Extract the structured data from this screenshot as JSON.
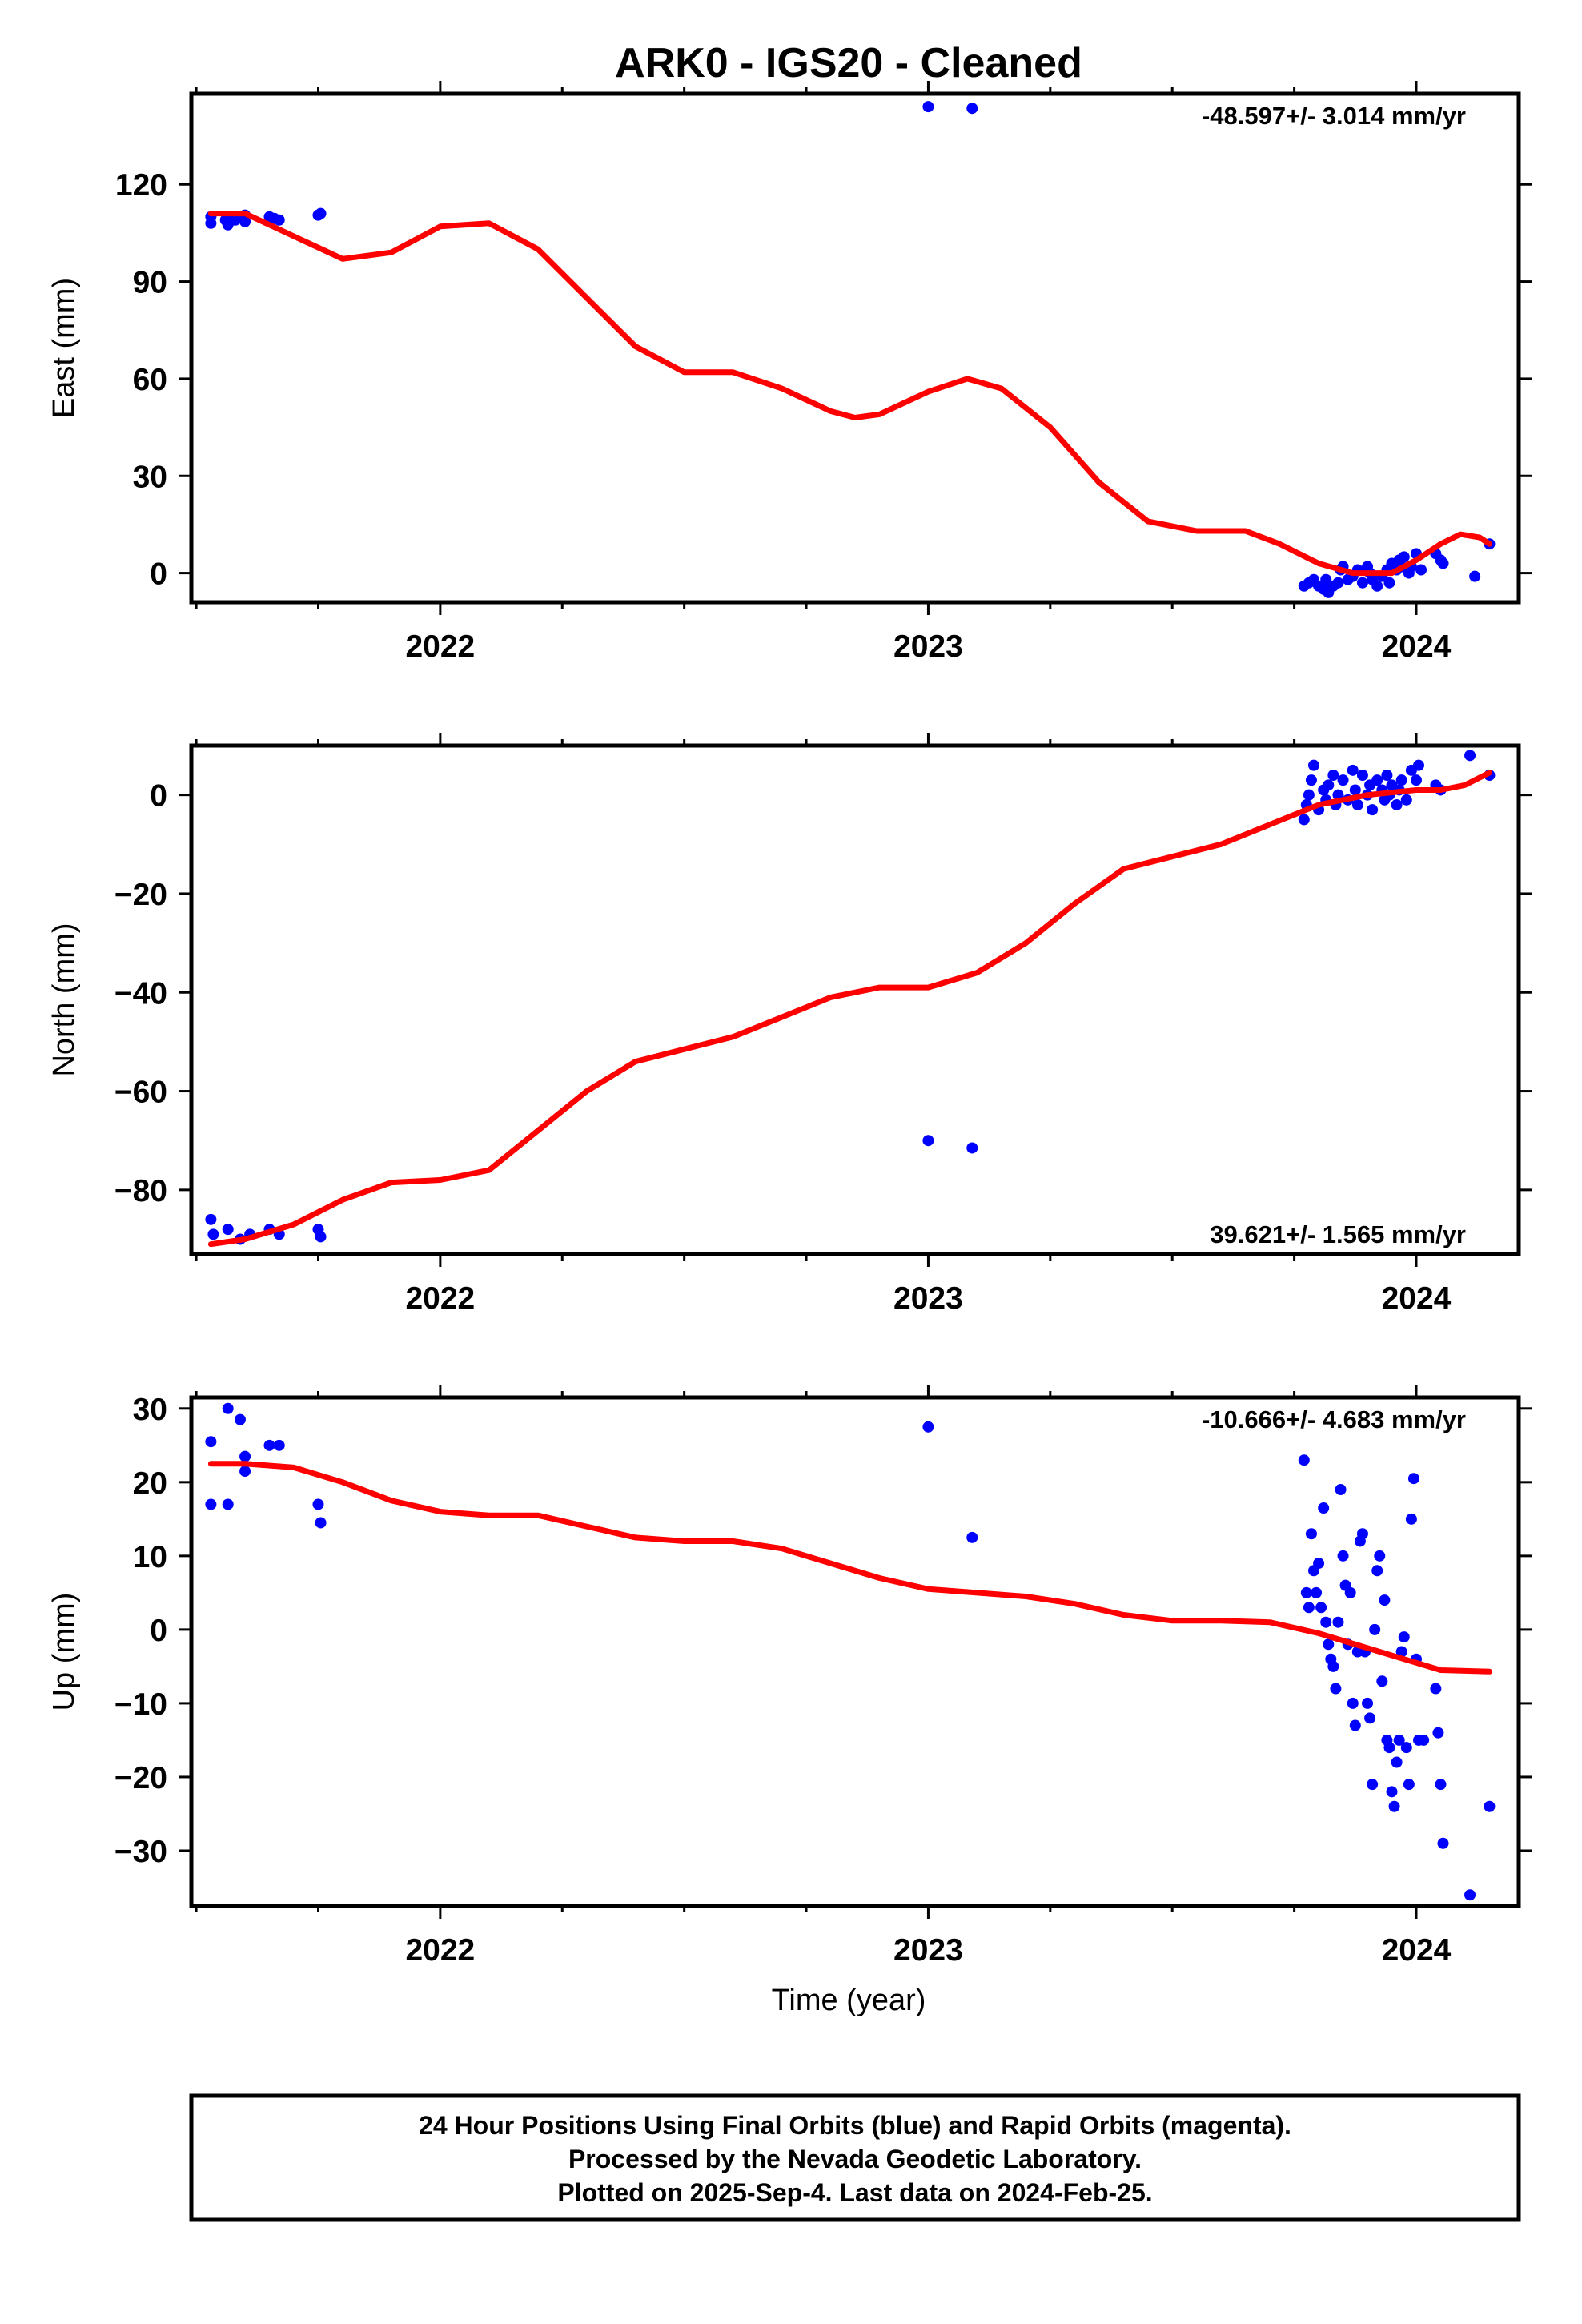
{
  "title": "ARK0  - IGS20 - Cleaned",
  "xlabel": "Time (year)",
  "footer": [
    "24 Hour Positions Using Final Orbits (blue) and Rapid Orbits (magenta).",
    "Processed by the Nevada Geodetic Laboratory.",
    "Plotted on 2025-Sep-4. Last data on 2024-Feb-25."
  ],
  "colors": {
    "points": "#0000ff",
    "model": "#ff0000",
    "frame": "#000000"
  },
  "chart_data": [
    {
      "type": "scatter",
      "panel": "east",
      "ylabel": "East (mm)",
      "rate": "-48.597+/- 3.014 mm/yr",
      "rate_position": "top-right",
      "xlim": [
        2021.49,
        2024.21
      ],
      "ylim": [
        -9,
        148
      ],
      "xticks": [
        2022,
        2023,
        2024
      ],
      "xtick_labels": [
        "2022",
        "2023",
        "2024"
      ],
      "yticks": [
        0,
        30,
        60,
        90,
        120
      ],
      "ytick_labels": [
        "0",
        "30",
        "60",
        "90",
        "120"
      ],
      "points": [
        [
          2021.53,
          108
        ],
        [
          2021.53,
          110
        ],
        [
          2021.56,
          109
        ],
        [
          2021.565,
          107.5
        ],
        [
          2021.575,
          110
        ],
        [
          2021.58,
          109
        ],
        [
          2021.6,
          108.5
        ],
        [
          2021.6,
          110.5
        ],
        [
          2021.65,
          110
        ],
        [
          2021.66,
          109.5
        ],
        [
          2021.67,
          109
        ],
        [
          2021.75,
          110.5
        ],
        [
          2021.755,
          111
        ],
        [
          2023.0,
          144
        ],
        [
          2023.09,
          143.5
        ],
        [
          2023.77,
          -4
        ],
        [
          2023.78,
          -3
        ],
        [
          2023.79,
          -2
        ],
        [
          2023.8,
          -4
        ],
        [
          2023.81,
          -5
        ],
        [
          2023.815,
          -2
        ],
        [
          2023.82,
          -6
        ],
        [
          2023.83,
          -4
        ],
        [
          2023.84,
          -3
        ],
        [
          2023.845,
          1
        ],
        [
          2023.85,
          2
        ],
        [
          2023.86,
          -2
        ],
        [
          2023.87,
          -1
        ],
        [
          2023.88,
          1
        ],
        [
          2023.89,
          -3
        ],
        [
          2023.9,
          2
        ],
        [
          2023.905,
          0
        ],
        [
          2023.91,
          -2
        ],
        [
          2023.92,
          -4
        ],
        [
          2023.93,
          -1
        ],
        [
          2023.94,
          1
        ],
        [
          2023.945,
          -3
        ],
        [
          2023.95,
          3
        ],
        [
          2023.96,
          1
        ],
        [
          2023.965,
          4
        ],
        [
          2023.97,
          2
        ],
        [
          2023.975,
          5
        ],
        [
          2023.985,
          0
        ],
        [
          2023.99,
          2
        ],
        [
          2024.0,
          6
        ],
        [
          2024.01,
          1
        ],
        [
          2024.04,
          6
        ],
        [
          2024.05,
          4
        ],
        [
          2024.055,
          3
        ],
        [
          2024.12,
          -1
        ],
        [
          2024.15,
          9
        ]
      ],
      "model_curve": [
        [
          2021.53,
          111
        ],
        [
          2021.6,
          111
        ],
        [
          2021.7,
          104
        ],
        [
          2021.8,
          97
        ],
        [
          2021.9,
          99
        ],
        [
          2022.0,
          107
        ],
        [
          2022.1,
          108
        ],
        [
          2022.2,
          100
        ],
        [
          2022.3,
          85
        ],
        [
          2022.4,
          70
        ],
        [
          2022.5,
          62
        ],
        [
          2022.6,
          62
        ],
        [
          2022.7,
          57
        ],
        [
          2022.8,
          50
        ],
        [
          2022.85,
          48
        ],
        [
          2022.9,
          49
        ],
        [
          2023.0,
          56
        ],
        [
          2023.08,
          60
        ],
        [
          2023.15,
          57
        ],
        [
          2023.25,
          45
        ],
        [
          2023.35,
          28
        ],
        [
          2023.45,
          16
        ],
        [
          2023.55,
          13
        ],
        [
          2023.65,
          13
        ],
        [
          2023.72,
          9
        ],
        [
          2023.8,
          3
        ],
        [
          2023.87,
          0
        ],
        [
          2023.95,
          0
        ],
        [
          2024.0,
          4
        ],
        [
          2024.05,
          9
        ],
        [
          2024.09,
          12
        ],
        [
          2024.13,
          11
        ],
        [
          2024.15,
          9
        ]
      ]
    },
    {
      "type": "scatter",
      "panel": "north",
      "ylabel": "North (mm)",
      "rate": "39.621+/- 1.565 mm/yr",
      "rate_position": "bottom-right",
      "xlim": [
        2021.49,
        2024.21
      ],
      "ylim": [
        -93,
        10
      ],
      "xticks": [
        2022,
        2023,
        2024
      ],
      "xtick_labels": [
        "2022",
        "2023",
        "2024"
      ],
      "yticks": [
        -80,
        -60,
        -40,
        -20,
        0
      ],
      "ytick_labels": [
        "−80",
        "−60",
        "−40",
        "−20",
        "0"
      ],
      "points": [
        [
          2021.53,
          -86
        ],
        [
          2021.535,
          -89
        ],
        [
          2021.565,
          -88
        ],
        [
          2021.59,
          -90
        ],
        [
          2021.61,
          -89
        ],
        [
          2021.65,
          -88
        ],
        [
          2021.67,
          -89
        ],
        [
          2021.75,
          -88
        ],
        [
          2021.755,
          -89.5
        ],
        [
          2023.0,
          -70
        ],
        [
          2023.09,
          -71.5
        ],
        [
          2023.77,
          -5
        ],
        [
          2023.775,
          -2
        ],
        [
          2023.78,
          0
        ],
        [
          2023.785,
          3
        ],
        [
          2023.79,
          6
        ],
        [
          2023.8,
          -3
        ],
        [
          2023.81,
          1
        ],
        [
          2023.815,
          -1
        ],
        [
          2023.82,
          2
        ],
        [
          2023.83,
          4
        ],
        [
          2023.835,
          -2
        ],
        [
          2023.84,
          0
        ],
        [
          2023.85,
          3
        ],
        [
          2023.86,
          -1
        ],
        [
          2023.87,
          5
        ],
        [
          2023.875,
          1
        ],
        [
          2023.88,
          -2
        ],
        [
          2023.89,
          4
        ],
        [
          2023.9,
          0
        ],
        [
          2023.905,
          2
        ],
        [
          2023.91,
          -3
        ],
        [
          2023.92,
          3
        ],
        [
          2023.93,
          1
        ],
        [
          2023.935,
          -1
        ],
        [
          2023.94,
          4
        ],
        [
          2023.945,
          0
        ],
        [
          2023.95,
          2
        ],
        [
          2023.96,
          -2
        ],
        [
          2023.965,
          1
        ],
        [
          2023.97,
          3
        ],
        [
          2023.98,
          -1
        ],
        [
          2023.99,
          5
        ],
        [
          2024.0,
          3
        ],
        [
          2024.005,
          6
        ],
        [
          2024.04,
          2
        ],
        [
          2024.05,
          1
        ],
        [
          2024.11,
          8
        ],
        [
          2024.15,
          4
        ]
      ],
      "model_curve": [
        [
          2021.53,
          -91
        ],
        [
          2021.6,
          -90
        ],
        [
          2021.7,
          -87
        ],
        [
          2021.8,
          -82
        ],
        [
          2021.9,
          -78.5
        ],
        [
          2022.0,
          -78
        ],
        [
          2022.1,
          -76
        ],
        [
          2022.2,
          -68
        ],
        [
          2022.3,
          -60
        ],
        [
          2022.4,
          -54
        ],
        [
          2022.5,
          -51.5
        ],
        [
          2022.6,
          -49
        ],
        [
          2022.7,
          -45
        ],
        [
          2022.8,
          -41
        ],
        [
          2022.9,
          -39
        ],
        [
          2023.0,
          -39
        ],
        [
          2023.1,
          -36
        ],
        [
          2023.2,
          -30
        ],
        [
          2023.3,
          -22
        ],
        [
          2023.4,
          -15
        ],
        [
          2023.5,
          -12.5
        ],
        [
          2023.6,
          -10
        ],
        [
          2023.7,
          -6
        ],
        [
          2023.8,
          -2
        ],
        [
          2023.9,
          0
        ],
        [
          2024.0,
          1
        ],
        [
          2024.05,
          1
        ],
        [
          2024.1,
          2
        ],
        [
          2024.15,
          4.5
        ]
      ]
    },
    {
      "type": "scatter",
      "panel": "up",
      "ylabel": "Up (mm)",
      "rate": "-10.666+/- 4.683 mm/yr",
      "rate_position": "top-right",
      "xlim": [
        2021.49,
        2024.21
      ],
      "ylim": [
        -37.5,
        31.5
      ],
      "xticks": [
        2022,
        2023,
        2024
      ],
      "xtick_labels": [
        "2022",
        "2023",
        "2024"
      ],
      "yticks": [
        -30,
        -20,
        -10,
        0,
        10,
        20,
        30
      ],
      "ytick_labels": [
        "−30",
        "−20",
        "−10",
        "0",
        "10",
        "20",
        "30"
      ],
      "points": [
        [
          2021.53,
          25.5
        ],
        [
          2021.53,
          17
        ],
        [
          2021.565,
          17
        ],
        [
          2021.565,
          30
        ],
        [
          2021.59,
          28.5
        ],
        [
          2021.6,
          23.5
        ],
        [
          2021.6,
          21.5
        ],
        [
          2021.65,
          25
        ],
        [
          2021.67,
          25
        ],
        [
          2021.75,
          17
        ],
        [
          2021.755,
          14.5
        ],
        [
          2023.0,
          27.5
        ],
        [
          2023.09,
          12.5
        ],
        [
          2023.77,
          23
        ],
        [
          2023.775,
          5
        ],
        [
          2023.78,
          3
        ],
        [
          2023.785,
          13
        ],
        [
          2023.79,
          8
        ],
        [
          2023.795,
          5
        ],
        [
          2023.8,
          9
        ],
        [
          2023.805,
          3
        ],
        [
          2023.81,
          16.5
        ],
        [
          2023.815,
          1
        ],
        [
          2023.82,
          -2
        ],
        [
          2023.825,
          -4
        ],
        [
          2023.83,
          -5
        ],
        [
          2023.835,
          -8
        ],
        [
          2023.84,
          1
        ],
        [
          2023.845,
          19
        ],
        [
          2023.85,
          10
        ],
        [
          2023.855,
          6
        ],
        [
          2023.86,
          -2
        ],
        [
          2023.865,
          5
        ],
        [
          2023.87,
          -10
        ],
        [
          2023.875,
          -13
        ],
        [
          2023.88,
          -3
        ],
        [
          2023.885,
          12
        ],
        [
          2023.89,
          13
        ],
        [
          2023.895,
          -3
        ],
        [
          2023.9,
          -10
        ],
        [
          2023.905,
          -12
        ],
        [
          2023.91,
          -21
        ],
        [
          2023.915,
          0
        ],
        [
          2023.92,
          8
        ],
        [
          2023.925,
          10
        ],
        [
          2023.93,
          -7
        ],
        [
          2023.935,
          4
        ],
        [
          2023.94,
          -15
        ],
        [
          2023.945,
          -16
        ],
        [
          2023.95,
          -22
        ],
        [
          2023.955,
          -24
        ],
        [
          2023.96,
          -18
        ],
        [
          2023.965,
          -15
        ],
        [
          2023.97,
          -3
        ],
        [
          2023.975,
          -1
        ],
        [
          2023.98,
          -16
        ],
        [
          2023.985,
          -21
        ],
        [
          2023.99,
          15
        ],
        [
          2023.995,
          20.5
        ],
        [
          2024.0,
          -4
        ],
        [
          2024.005,
          -15
        ],
        [
          2024.015,
          -15
        ],
        [
          2024.04,
          -8
        ],
        [
          2024.045,
          -14
        ],
        [
          2024.05,
          -21
        ],
        [
          2024.055,
          -29
        ],
        [
          2024.11,
          -36
        ],
        [
          2024.15,
          -24
        ]
      ],
      "model_curve": [
        [
          2021.53,
          22.5
        ],
        [
          2021.6,
          22.5
        ],
        [
          2021.7,
          22
        ],
        [
          2021.8,
          20
        ],
        [
          2021.9,
          17.5
        ],
        [
          2022.0,
          16
        ],
        [
          2022.1,
          15.5
        ],
        [
          2022.2,
          15.5
        ],
        [
          2022.3,
          14
        ],
        [
          2022.4,
          12.5
        ],
        [
          2022.5,
          12
        ],
        [
          2022.6,
          12
        ],
        [
          2022.7,
          11
        ],
        [
          2022.8,
          9
        ],
        [
          2022.9,
          7
        ],
        [
          2023.0,
          5.5
        ],
        [
          2023.1,
          5
        ],
        [
          2023.2,
          4.5
        ],
        [
          2023.3,
          3.5
        ],
        [
          2023.4,
          2
        ],
        [
          2023.5,
          1.2
        ],
        [
          2023.6,
          1.2
        ],
        [
          2023.7,
          1
        ],
        [
          2023.8,
          -0.5
        ],
        [
          2023.9,
          -2.5
        ],
        [
          2024.0,
          -4.5
        ],
        [
          2024.05,
          -5.5
        ],
        [
          2024.15,
          -5.7
        ]
      ]
    }
  ]
}
